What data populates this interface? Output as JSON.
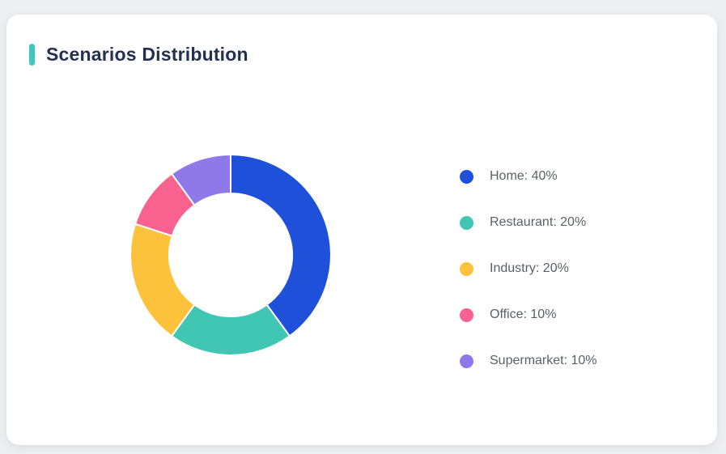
{
  "card": {
    "title": "Scenarios Distribution",
    "accent_color": "#3ec6c2"
  },
  "chart_data": {
    "type": "pie",
    "subtype": "donut",
    "title": "Scenarios Distribution",
    "categories": [
      "Home",
      "Restaurant",
      "Industry",
      "Office",
      "Supermarket"
    ],
    "values": [
      40,
      20,
      20,
      10,
      10
    ],
    "unit": "%",
    "colors": [
      "#1e50d9",
      "#41c6b4",
      "#fcc23c",
      "#f9628e",
      "#8f79e8"
    ],
    "start_angle_deg": 0,
    "direction": "clockwise",
    "inner_radius_ratio": 0.61,
    "segment_gap_color": "#ffffff",
    "legend_position": "right",
    "legend_entries": [
      "Home: 40%",
      "Restaurant: 20%",
      "Industry: 20%",
      "Office: 10%",
      "Supermarket: 10%"
    ]
  }
}
